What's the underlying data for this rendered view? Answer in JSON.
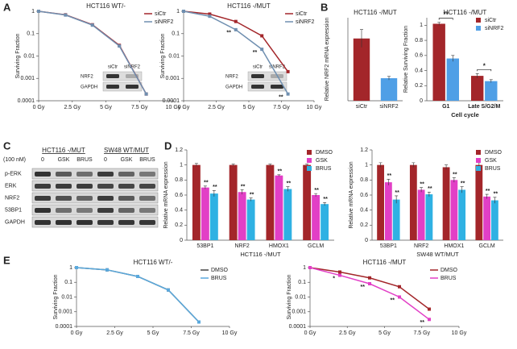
{
  "panel_labels": [
    "A",
    "B",
    "C",
    "D",
    "E"
  ],
  "blot": {
    "treatment": "(100 nM)",
    "groups": [
      "HCT116 -/MUT",
      "SW48 WT/MUT"
    ],
    "lanes": [
      "0",
      "GSK",
      "BRUS",
      "0",
      "GSK",
      "BRUS"
    ],
    "rows": [
      "p-ERK",
      "ERK",
      "NRF2",
      "53BP1",
      "GAPDH"
    ]
  },
  "chart_data": [
    {
      "type": "line",
      "title": "HCT116 WT/-",
      "y_label": "Surviving Fraction",
      "log_y": true,
      "legend": "upper right",
      "x": [
        0,
        2,
        4,
        6,
        8
      ],
      "xlim": [
        0,
        10
      ],
      "xticks": [
        {
          "value": 0,
          "label": "0 Gy"
        },
        {
          "value": 2.5,
          "label": "2.5 Gy"
        },
        {
          "value": 5,
          "label": "5 Gy"
        },
        {
          "value": 7.5,
          "label": "7.5 Gy"
        },
        {
          "value": 10,
          "label": "10 Gy"
        }
      ],
      "ylim": [
        0.0001,
        1
      ],
      "yticks": [
        1,
        0.1,
        0.01,
        0.001,
        0.0001
      ],
      "series": [
        {
          "name": "siCtr",
          "color": "#a3262a",
          "values": [
            1,
            0.7,
            0.25,
            0.03,
            0.0002
          ]
        },
        {
          "name": "siNRF2",
          "color": "#6f8fb0",
          "values": [
            1,
            0.68,
            0.24,
            0.028,
            0.0002
          ]
        }
      ],
      "inset": {
        "rows": [
          "NRF2",
          "GAPDH"
        ],
        "lanes": [
          "siCtr",
          "siNRF2"
        ]
      }
    },
    {
      "type": "line",
      "title": "HCT116 -/MUT",
      "y_label": "Surviving Fraction",
      "log_y": true,
      "legend": "upper right",
      "x": [
        0,
        2,
        4,
        6,
        8
      ],
      "xlim": [
        0,
        10
      ],
      "xticks": [
        {
          "value": 0,
          "label": "0 Gy"
        },
        {
          "value": 2.5,
          "label": "2.5 Gy"
        },
        {
          "value": 5,
          "label": "5 Gy"
        },
        {
          "value": 7.5,
          "label": "7.5 Gy"
        },
        {
          "value": 10,
          "label": "10 Gy"
        }
      ],
      "ylim": [
        0.0001,
        1
      ],
      "yticks": [
        1,
        0.1,
        0.01,
        0.001,
        0.0001
      ],
      "series": [
        {
          "name": "siCtr",
          "color": "#a3262a",
          "values": [
            1,
            0.75,
            0.35,
            0.08,
            0.002
          ]
        },
        {
          "name": "siNRF2",
          "color": "#6f8fb0",
          "values": [
            1,
            0.6,
            0.15,
            0.02,
            0.0002
          ],
          "point_labels": [
            null,
            null,
            "**",
            "**",
            "**"
          ]
        }
      ],
      "inset": {
        "rows": [
          "NRF2",
          "GAPDH"
        ],
        "lanes": [
          "siCtr",
          "siNRF2"
        ]
      }
    },
    {
      "type": "bar",
      "title": "HCT116 -/MUT",
      "y_label": "Relative NRF2 mRNA expression",
      "ylim": [
        0,
        1.4
      ],
      "categories": [
        "siCtr",
        "siNRF2"
      ],
      "series": [
        {
          "colors": [
            "#a3262a",
            "#4f9fe6"
          ],
          "values": [
            1.05,
            0.38
          ],
          "errors": [
            0.15,
            0.03
          ]
        }
      ]
    },
    {
      "type": "bar",
      "title": "HCT116 -/MUT",
      "y_label": "Relative Surviving Fraction",
      "x_label": "Cell cycle",
      "legend": "upper right",
      "ylim": [
        0,
        1.1
      ],
      "yticks": [
        0,
        0.2,
        0.4,
        0.6,
        0.8,
        1
      ],
      "categories": [
        "G1",
        "Late S/G2/M"
      ],
      "significance": [
        "**",
        "*"
      ],
      "series": [
        {
          "name": "siCtr",
          "color": "#a3262a",
          "values": [
            1.02,
            0.33
          ],
          "errors": [
            0.02,
            0.03
          ]
        },
        {
          "name": "siNRF2",
          "color": "#4f9fe6",
          "values": [
            0.56,
            0.26
          ],
          "errors": [
            0.04,
            0.02
          ]
        }
      ]
    },
    {
      "type": "bar",
      "y_label": "Relative mRNA expression",
      "x_label": "HCT116 -/MUT",
      "legend": "upper right",
      "ylim": [
        0,
        1.2
      ],
      "yticks": [
        0,
        0.2,
        0.4,
        0.6,
        0.8,
        1,
        1.2
      ],
      "categories": [
        "53BP1",
        "NRF2",
        "HMOX1",
        "GCLM"
      ],
      "series": [
        {
          "name": "DMSO",
          "color": "#a3262a",
          "values": [
            1,
            1,
            1,
            1
          ],
          "errors": [
            0.02,
            0.01,
            0.01,
            0.01
          ]
        },
        {
          "name": "GSK",
          "color": "#e23fc6",
          "values": [
            0.7,
            0.64,
            0.86,
            0.6
          ],
          "errors": [
            0.02,
            0.03,
            0.01,
            0.02
          ],
          "point_labels": [
            "**",
            "**",
            "**",
            "**"
          ]
        },
        {
          "name": "BRUS",
          "color": "#2fb1e3",
          "values": [
            0.62,
            0.54,
            0.68,
            0.48
          ],
          "errors": [
            0.04,
            0.02,
            0.03,
            0.02
          ],
          "point_labels": [
            "**",
            "**",
            "**",
            "**"
          ]
        }
      ]
    },
    {
      "type": "bar",
      "y_label": "Relative mRNA expression",
      "x_label": "SW48 WT/MUT",
      "legend": "upper right",
      "ylim": [
        0,
        1.2
      ],
      "yticks": [
        0,
        0.2,
        0.4,
        0.6,
        0.8,
        1,
        1.2
      ],
      "categories": [
        "53BP1",
        "NRF2",
        "HMOX1",
        "GCLM"
      ],
      "series": [
        {
          "name": "DMSO",
          "color": "#a3262a",
          "values": [
            1,
            1,
            0.97,
            1
          ],
          "errors": [
            0.03,
            0.03,
            0.03,
            0.03
          ]
        },
        {
          "name": "GSK",
          "color": "#e23fc6",
          "values": [
            0.77,
            0.67,
            0.8,
            0.58
          ],
          "errors": [
            0.04,
            0.03,
            0.03,
            0.03
          ],
          "point_labels": [
            "**",
            "**",
            "**",
            "**"
          ]
        },
        {
          "name": "BRUS",
          "color": "#2fb1e3",
          "values": [
            0.54,
            0.61,
            0.67,
            0.53
          ],
          "errors": [
            0.05,
            0.03,
            0.04,
            0.04
          ],
          "point_labels": [
            "**",
            "**",
            "**",
            "**"
          ]
        }
      ]
    },
    {
      "type": "line",
      "title": "HCT116 WT/-",
      "y_label": "Surviving Fraction",
      "log_y": true,
      "legend": "upper right",
      "x": [
        0,
        2,
        4,
        6,
        8
      ],
      "xlim": [
        0,
        10
      ],
      "xticks": [
        {
          "value": 0,
          "label": "0 Gy"
        },
        {
          "value": 2.5,
          "label": "2.5 Gy"
        },
        {
          "value": 5,
          "label": "5 Gy"
        },
        {
          "value": 7.5,
          "label": "7.5 Gy"
        },
        {
          "value": 10,
          "label": "10 Gy"
        }
      ],
      "ylim": [
        0.0001,
        1
      ],
      "yticks": [
        1,
        0.1,
        0.01,
        0.001,
        0.0001
      ],
      "series": [
        {
          "name": "DMSO",
          "color": "#444444",
          "values": [
            1,
            0.7,
            0.25,
            0.03,
            0.0002
          ]
        },
        {
          "name": "BRUS",
          "color": "#5aa9dd",
          "values": [
            1,
            0.7,
            0.25,
            0.03,
            0.0002
          ]
        }
      ]
    },
    {
      "type": "line",
      "title": "HCT116 -/MUT",
      "y_label": "Surviving Fraction",
      "log_y": true,
      "legend": "upper right",
      "x": [
        0,
        2,
        4,
        6,
        8
      ],
      "xlim": [
        0,
        10
      ],
      "xticks": [
        {
          "value": 0,
          "label": "0 Gy"
        },
        {
          "value": 2.5,
          "label": "2.5 Gy"
        },
        {
          "value": 5,
          "label": "5 Gy"
        },
        {
          "value": 7.5,
          "label": "7.5 Gy"
        },
        {
          "value": 10,
          "label": "10 Gy"
        }
      ],
      "ylim": [
        0.0001,
        1
      ],
      "yticks": [
        1,
        0.1,
        0.01,
        0.001,
        0.0001
      ],
      "series": [
        {
          "name": "DMSO",
          "color": "#a3262a",
          "values": [
            1,
            0.5,
            0.2,
            0.05,
            0.0015
          ]
        },
        {
          "name": "BRUS",
          "color": "#e23fc6",
          "values": [
            1,
            0.3,
            0.08,
            0.01,
            0.0003
          ],
          "point_labels": [
            null,
            "*",
            "**",
            "**",
            "**"
          ]
        }
      ]
    }
  ]
}
